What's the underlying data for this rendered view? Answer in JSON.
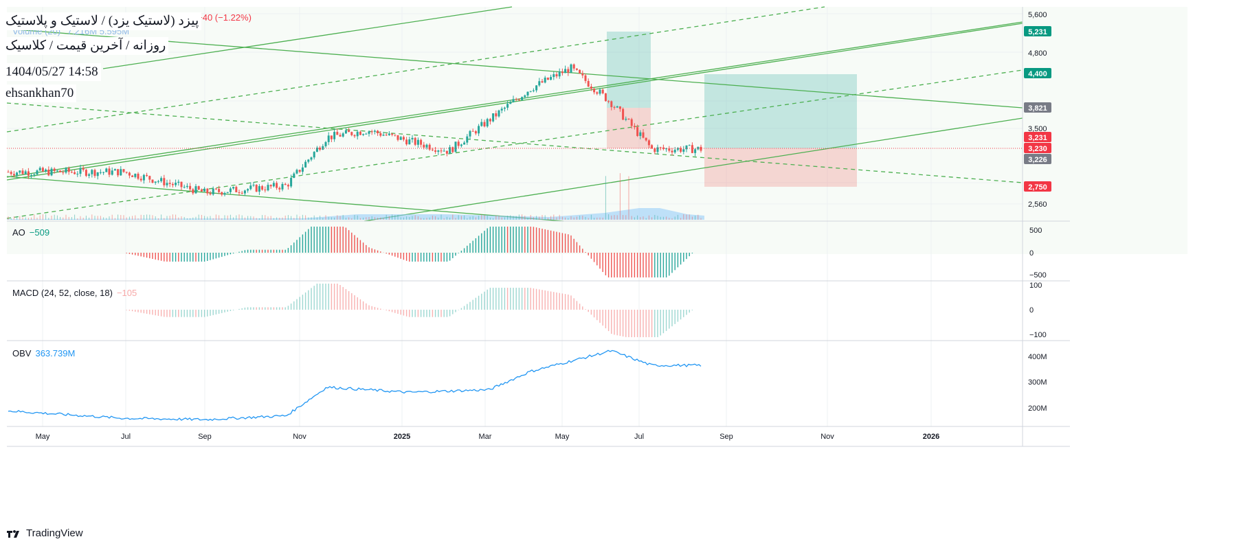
{
  "header": {
    "symbol_title": "پیزد (لاستیک یزد) / لاستیک و پلاستیک",
    "interval_line": "روزانه / آخرین قیمت / کلاسیک",
    "datetime": "1404/05/27 14:58",
    "author": "ehsankhan70",
    "ohlc_partial": "C 3,230 −40 (−1.22%)",
    "volume_label": "Volume (20)",
    "volume_values": "7.216M  5.595M"
  },
  "indicators": {
    "ao": {
      "label": "AO",
      "value": "−509"
    },
    "macd": {
      "label": "MACD (24, 52, close, 18)",
      "value": "−105"
    },
    "obv": {
      "label": "OBV",
      "value": "363.739M"
    }
  },
  "branding": {
    "text": "TradingView"
  },
  "colors": {
    "up": "#26a69a",
    "down": "#ef5350",
    "trend_green": "#4caf50",
    "obv_blue": "#2196f3",
    "volume_fill": "#90caf9",
    "badge_green": "#089981",
    "badge_red": "#f23645",
    "badge_gray": "#787b86"
  },
  "chart_data": {
    "type": "candlestick",
    "x_axis_ticks": [
      "May",
      "Jul",
      "Sep",
      "Nov",
      "2025",
      "Mar",
      "May",
      "Jul",
      "Sep",
      "Nov",
      "2026"
    ],
    "price_axis_ticks": [
      "5,600",
      "4,800",
      "3,500",
      "2,560"
    ],
    "price_badges": [
      {
        "label": "5,231",
        "color": "green"
      },
      {
        "label": "4,400",
        "color": "green"
      },
      {
        "label": "3,821",
        "color": "gray"
      },
      {
        "label": "3,231",
        "color": "red"
      },
      {
        "label": "3,230",
        "color": "red"
      },
      {
        "label": "3,226",
        "color": "gray"
      },
      {
        "label": "2,750",
        "color": "red"
      }
    ],
    "last_close": 3230,
    "ao_axis_ticks": [
      "500",
      "0",
      "−500"
    ],
    "macd_axis_ticks": [
      "100",
      "0",
      "−100"
    ],
    "obv_axis_ticks": [
      "400M",
      "300M",
      "200M"
    ],
    "price_series_approx": [
      {
        "x": "May 2024",
        "y": 2900
      },
      {
        "x": "Jul 2024",
        "y": 2900
      },
      {
        "x": "Sep 2024",
        "y": 2600
      },
      {
        "x": "Nov 2024",
        "y": 2700
      },
      {
        "x": "Dec 2024",
        "y": 3400
      },
      {
        "x": "Jan 2025",
        "y": 3500
      },
      {
        "x": "Mar 2025",
        "y": 3200
      },
      {
        "x": "May 2025",
        "y": 4100
      },
      {
        "x": "Jun 2025",
        "y": 4400
      },
      {
        "x": "Jul 2025",
        "y": 3900
      },
      {
        "x": "Aug 2025",
        "y": 3230
      }
    ],
    "obv_series_approx": [
      {
        "x": "May 2024",
        "y": 180
      },
      {
        "x": "Jul 2024",
        "y": 160
      },
      {
        "x": "Sep 2024",
        "y": 155
      },
      {
        "x": "Nov 2024",
        "y": 170
      },
      {
        "x": "Dec 2024",
        "y": 280
      },
      {
        "x": "Feb 2025",
        "y": 260
      },
      {
        "x": "Apr 2025",
        "y": 270
      },
      {
        "x": "May 2025",
        "y": 340
      },
      {
        "x": "Jul 2025",
        "y": 420
      },
      {
        "x": "Aug 2025",
        "y": 364
      }
    ]
  }
}
